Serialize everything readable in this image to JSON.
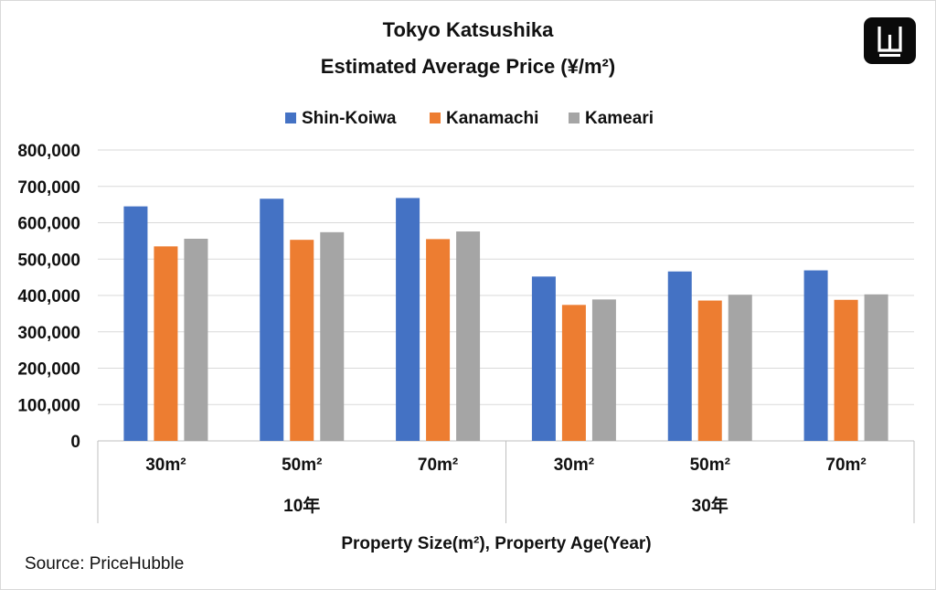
{
  "title": "Tokyo Katsushika",
  "subtitle": "Estimated Average Price (¥/m²)",
  "source": "Source: PriceHubble",
  "logo_icon": "pricehubble-w-logo-icon",
  "chart_data": {
    "type": "bar",
    "title": "Tokyo Katsushika",
    "subtitle": "Estimated Average Price (¥/m²)",
    "xlabel": "Property Size(m²), Property Age(Year)",
    "ylabel": "",
    "ylim": [
      0,
      800000
    ],
    "yticks": [
      0,
      100000,
      200000,
      300000,
      400000,
      500000,
      600000,
      700000,
      800000
    ],
    "ytick_labels": [
      "0",
      "100,000",
      "200,000",
      "300,000",
      "400,000",
      "500,000",
      "600,000",
      "700,000",
      "800,000"
    ],
    "grid": true,
    "legend_position": "top",
    "categories": [
      "30m²",
      "50m²",
      "70m²",
      "30m²",
      "50m²",
      "70m²"
    ],
    "groups": [
      {
        "label": "10年",
        "start": 0,
        "count": 3
      },
      {
        "label": "30年",
        "start": 3,
        "count": 3
      }
    ],
    "series": [
      {
        "name": "Shin-Koiwa",
        "color": "#4472c4",
        "values": [
          645000,
          666000,
          668000,
          452000,
          466000,
          469000
        ]
      },
      {
        "name": "Kanamachi",
        "color": "#ed7d31",
        "values": [
          535000,
          553000,
          555000,
          374000,
          386000,
          388000
        ]
      },
      {
        "name": "Kameari",
        "color": "#a5a5a5",
        "values": [
          556000,
          574000,
          576000,
          389000,
          402000,
          403000
        ]
      }
    ]
  }
}
